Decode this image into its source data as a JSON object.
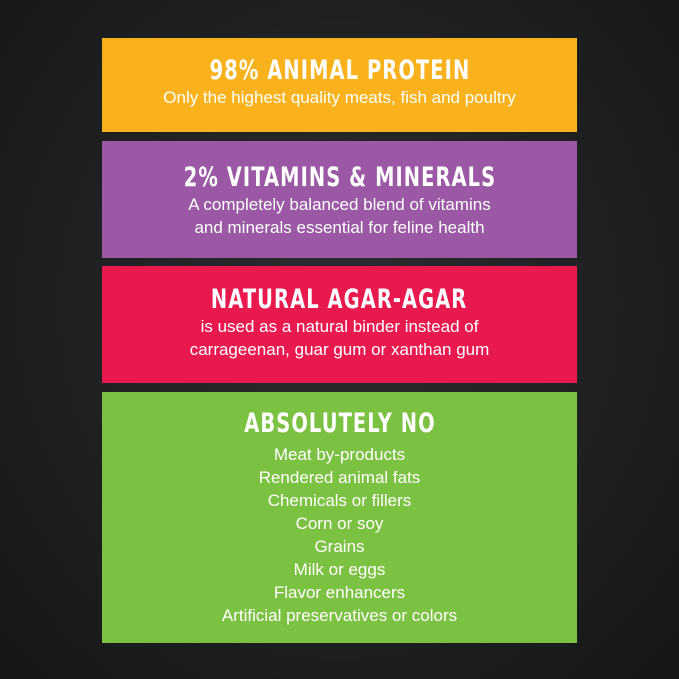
{
  "colors": {
    "protein": "#f9b21c",
    "vitamins": "#9b58a5",
    "agar": "#e8194f",
    "no": "#7cc242",
    "background": "#1f2021"
  },
  "panels": [
    {
      "heading": "98% ANIMAL PROTEIN",
      "lines": [
        "Only the highest quality meats, fish and poultry"
      ]
    },
    {
      "heading": "2% VITAMINS & MINERALS",
      "lines": [
        "A completely balanced blend of vitamins",
        "and minerals essential for feline health"
      ]
    },
    {
      "heading": "NATURAL AGAR-AGAR",
      "lines": [
        "is used as a natural binder instead of",
        "carrageenan, guar gum or xanthan gum"
      ]
    },
    {
      "heading": "ABSOLUTELY NO",
      "lines": [
        "Meat by-products",
        "Rendered animal fats",
        "Chemicals or fillers",
        "Corn or soy",
        "Grains",
        "Milk or eggs",
        "Flavor enhancers",
        "Artificial preservatives or colors"
      ]
    }
  ]
}
